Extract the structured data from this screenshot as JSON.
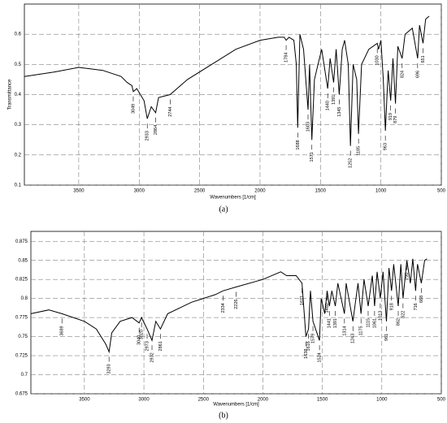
{
  "chart_data": [
    {
      "type": "line",
      "caption": "(a)",
      "xlabel": "Wavenumbers [1/cm]",
      "ylabel": "Transmittance",
      "xlim": [
        3950,
        500
      ],
      "ylim": [
        0.1,
        0.7
      ],
      "xticks": [
        3500,
        3000,
        2500,
        2000,
        1500,
        1000,
        500
      ],
      "yticks": [
        0.1,
        0.2,
        0.3,
        0.4,
        0.5,
        0.6
      ],
      "grid": true,
      "series": [
        {
          "color": "#000000",
          "x": [
            3950,
            3700,
            3500,
            3300,
            3150,
            3100,
            3060,
            3049,
            3020,
            2960,
            2933,
            2900,
            2864,
            2840,
            2744,
            2600,
            2400,
            2200,
            2000,
            1850,
            1800,
            1784,
            1760,
            1720,
            1700,
            1688,
            1670,
            1640,
            1603,
            1590,
            1571,
            1550,
            1520,
            1490,
            1440,
            1420,
            1391,
            1370,
            1345,
            1320,
            1300,
            1270,
            1252,
            1230,
            1200,
            1185,
            1160,
            1100,
            1030,
            1020,
            1000,
            980,
            963,
            940,
            919,
            900,
            879,
            860,
            824,
            800,
            740,
            696,
            680,
            651,
            630,
            600
          ],
          "values": [
            0.46,
            0.475,
            0.49,
            0.48,
            0.46,
            0.44,
            0.43,
            0.41,
            0.42,
            0.38,
            0.32,
            0.36,
            0.34,
            0.39,
            0.4,
            0.45,
            0.5,
            0.55,
            0.58,
            0.59,
            0.59,
            0.58,
            0.59,
            0.58,
            0.5,
            0.29,
            0.6,
            0.55,
            0.35,
            0.5,
            0.25,
            0.45,
            0.5,
            0.55,
            0.42,
            0.52,
            0.44,
            0.55,
            0.4,
            0.55,
            0.58,
            0.5,
            0.23,
            0.5,
            0.45,
            0.27,
            0.5,
            0.55,
            0.57,
            0.55,
            0.58,
            0.45,
            0.28,
            0.48,
            0.38,
            0.52,
            0.37,
            0.56,
            0.52,
            0.6,
            0.62,
            0.52,
            0.63,
            0.57,
            0.65,
            0.66
          ]
        }
      ],
      "peaks": [
        3049,
        2933,
        2864,
        2744,
        1784,
        1688,
        1603,
        1571,
        1440,
        1391,
        1345,
        1252,
        1185,
        1030,
        963,
        919,
        879,
        824,
        696,
        651
      ]
    },
    {
      "type": "line",
      "caption": "(b)",
      "xlabel": "Wavenumbers [1/cm]",
      "xlim": [
        3950,
        500
      ],
      "ylim": [
        0.675,
        0.888
      ],
      "xticks": [
        3500,
        3000,
        2500,
        2000,
        1500,
        1000,
        500
      ],
      "yticks": [
        0.675,
        0.7,
        0.725,
        0.75,
        0.775,
        0.8,
        0.825,
        0.85,
        0.875
      ],
      "grid": true,
      "series": [
        {
          "color": "#000000",
          "x": [
            3950,
            3800,
            3689,
            3500,
            3400,
            3320,
            3293,
            3270,
            3200,
            3100,
            3040,
            3020,
            2973,
            2932,
            2900,
            2861,
            2800,
            2600,
            2400,
            2334,
            2226,
            2000,
            1850,
            1800,
            1720,
            1671,
            1638,
            1616,
            1600,
            1579,
            1524,
            1510,
            1480,
            1460,
            1441,
            1420,
            1391,
            1370,
            1314,
            1300,
            1243,
            1200,
            1175,
            1150,
            1115,
            1080,
            1061,
            1040,
            1013,
            990,
            961,
            940,
            918,
            900,
            862,
            840,
            822,
            790,
            760,
            740,
            716,
            700,
            668,
            640,
            620
          ],
          "values": [
            0.78,
            0.785,
            0.78,
            0.77,
            0.76,
            0.74,
            0.73,
            0.755,
            0.77,
            0.775,
            0.768,
            0.775,
            0.76,
            0.745,
            0.77,
            0.76,
            0.78,
            0.795,
            0.805,
            0.81,
            0.815,
            0.825,
            0.835,
            0.83,
            0.83,
            0.82,
            0.75,
            0.76,
            0.81,
            0.77,
            0.745,
            0.8,
            0.78,
            0.81,
            0.79,
            0.81,
            0.79,
            0.82,
            0.78,
            0.82,
            0.77,
            0.82,
            0.78,
            0.825,
            0.79,
            0.83,
            0.79,
            0.835,
            0.8,
            0.835,
            0.77,
            0.84,
            0.81,
            0.845,
            0.79,
            0.845,
            0.8,
            0.85,
            0.82,
            0.852,
            0.81,
            0.845,
            0.82,
            0.85,
            0.852
          ]
        }
      ],
      "peaks": [
        3689,
        3293,
        3040,
        3020,
        2973,
        2932,
        2861,
        2334,
        2226,
        1671,
        1638,
        1616,
        1579,
        1524,
        1460,
        1441,
        1391,
        1314,
        1243,
        1175,
        1115,
        1061,
        1013,
        961,
        918,
        862,
        822,
        790,
        716,
        668
      ]
    }
  ]
}
